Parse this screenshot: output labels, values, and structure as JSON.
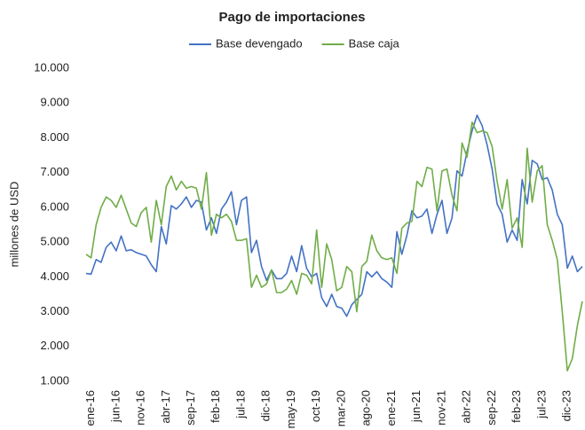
{
  "chart_data": {
    "type": "line",
    "title": "Pago de importaciones",
    "y_label": "millones de USD",
    "categories": [
      null,
      "ene-16",
      null,
      null,
      null,
      null,
      "jun-16",
      null,
      null,
      null,
      null,
      "nov-16",
      null,
      null,
      null,
      null,
      "abr-17",
      null,
      null,
      null,
      null,
      "sep-17",
      null,
      null,
      null,
      null,
      "feb-18",
      null,
      null,
      null,
      null,
      "jul-18",
      null,
      null,
      null,
      null,
      "dic-18",
      null,
      null,
      null,
      null,
      "may-19",
      null,
      null,
      null,
      null,
      "oct-19",
      null,
      null,
      null,
      null,
      "mar-20",
      null,
      null,
      null,
      null,
      "ago-20",
      null,
      null,
      null,
      null,
      "ene-21",
      null,
      null,
      null,
      null,
      "jun-21",
      null,
      null,
      null,
      null,
      "nov-21",
      null,
      null,
      null,
      null,
      "abr-22",
      null,
      null,
      null,
      null,
      "sep-22",
      null,
      null,
      null,
      null,
      "feb-23",
      null,
      null,
      null,
      null,
      "jul-23",
      null,
      null,
      null,
      null,
      "dic-23",
      null,
      null,
      null
    ],
    "series": [
      {
        "name": "Base devengado",
        "color": "#4472c4",
        "values": [
          4100,
          4080,
          4500,
          4420,
          4850,
          5000,
          4750,
          5180,
          4750,
          4780,
          4700,
          4650,
          4600,
          4350,
          4150,
          5450,
          4950,
          6050,
          5950,
          6100,
          6300,
          6000,
          6200,
          6150,
          5350,
          5700,
          5250,
          5950,
          6150,
          6450,
          5500,
          6200,
          6300,
          4700,
          5050,
          4300,
          3900,
          4200,
          3950,
          3950,
          4100,
          4600,
          4150,
          4900,
          4250,
          4000,
          4100,
          3400,
          3150,
          3500,
          3150,
          3100,
          2870,
          3200,
          3350,
          3500,
          4150,
          4000,
          4150,
          3950,
          3850,
          3700,
          5300,
          4650,
          5200,
          5900,
          5700,
          5750,
          5950,
          5250,
          5800,
          6200,
          5250,
          5700,
          7050,
          6900,
          7600,
          8200,
          8650,
          8350,
          7800,
          7100,
          6100,
          5800,
          5000,
          5350,
          5050,
          6800,
          6100,
          7350,
          7250,
          6800,
          6850,
          6500,
          5800,
          5500,
          4250,
          4600,
          4150,
          4300
        ]
      },
      {
        "name": "Base caja",
        "color": "#70ad47",
        "values": [
          4650,
          4550,
          5500,
          6000,
          6300,
          6200,
          6000,
          6350,
          5950,
          5550,
          5450,
          5850,
          6000,
          5000,
          6200,
          5500,
          6600,
          6900,
          6500,
          6750,
          6550,
          6600,
          6550,
          5950,
          7000,
          5200,
          5800,
          5700,
          5800,
          5600,
          5050,
          5050,
          5100,
          3700,
          4050,
          3700,
          3800,
          4200,
          3550,
          3550,
          3650,
          3900,
          3500,
          4100,
          4050,
          3800,
          5350,
          3700,
          4950,
          4500,
          3600,
          3700,
          4300,
          4150,
          3000,
          4300,
          4450,
          5200,
          4750,
          4550,
          4500,
          4550,
          4100,
          5400,
          5550,
          5600,
          6750,
          6600,
          7150,
          7100,
          5900,
          7050,
          7100,
          6350,
          5900,
          7850,
          7450,
          8450,
          8150,
          8200,
          8150,
          7750,
          6750,
          5950,
          6800,
          5400,
          5700,
          4850,
          7700,
          6150,
          7050,
          7200,
          5500,
          5050,
          4500,
          3000,
          1300,
          1650,
          2600,
          3300
        ]
      }
    ],
    "ylim": [
      1000,
      10000
    ],
    "yticks": [
      {
        "value": 1000,
        "label": "1.000"
      },
      {
        "value": 2000,
        "label": "2.000"
      },
      {
        "value": 3000,
        "label": "3.000"
      },
      {
        "value": 4000,
        "label": "4.000"
      },
      {
        "value": 5000,
        "label": "5.000"
      },
      {
        "value": 6000,
        "label": "6.000"
      },
      {
        "value": 7000,
        "label": "7.000"
      },
      {
        "value": 8000,
        "label": "8.000"
      },
      {
        "value": 9000,
        "label": "9.000"
      },
      {
        "value": 10000,
        "label": "10.000"
      }
    ],
    "grid": false,
    "legend": "top"
  }
}
